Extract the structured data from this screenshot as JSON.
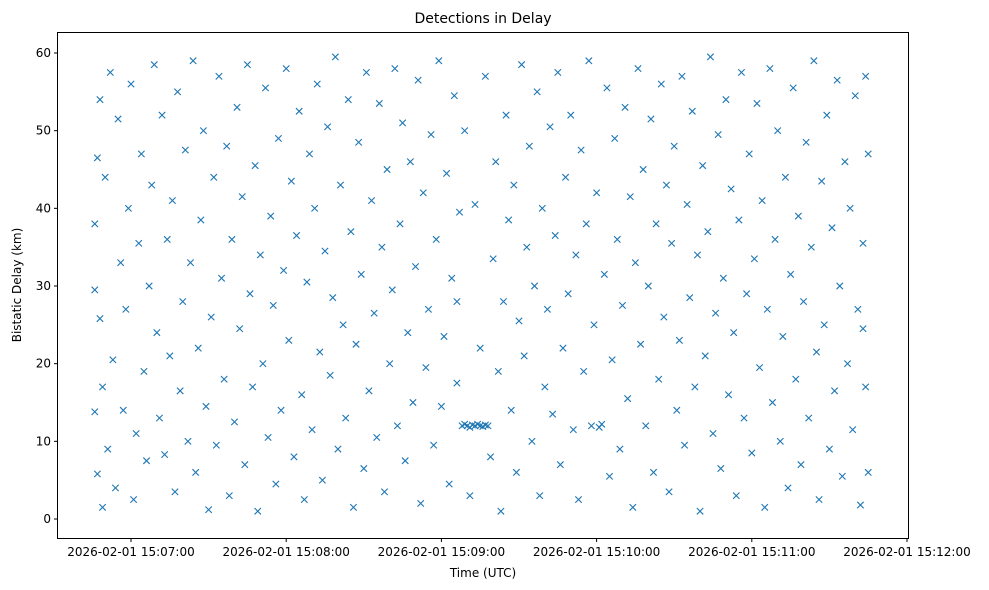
{
  "chart_data": {
    "type": "scatter",
    "title": "Detections in Delay",
    "xlabel": "Time (UTC)",
    "ylabel": "Bistatic Delay (km)",
    "x_unit": "seconds after 2026-02-01 15:06:00 UTC",
    "xlim": [
      26,
      360
    ],
    "ylim": [
      -3,
      63
    ],
    "x_ticks": [
      {
        "value": 60,
        "label": "2026-02-01 15:07:00"
      },
      {
        "value": 120,
        "label": "2026-02-01 15:08:00"
      },
      {
        "value": 180,
        "label": "2026-02-01 15:09:00"
      },
      {
        "value": 240,
        "label": "2026-02-01 15:10:00"
      },
      {
        "value": 300,
        "label": "2026-02-01 15:11:00"
      },
      {
        "value": 360,
        "label": "2026-02-01 15:12:00"
      }
    ],
    "y_ticks": [
      {
        "value": 0,
        "label": "0"
      },
      {
        "value": 10,
        "label": "10"
      },
      {
        "value": 20,
        "label": "20"
      },
      {
        "value": 30,
        "label": "30"
      },
      {
        "value": 40,
        "label": "40"
      },
      {
        "value": 50,
        "label": "50"
      },
      {
        "value": 60,
        "label": "60"
      }
    ],
    "grid": false,
    "marker": "x",
    "color": "#1f77b4",
    "points_note": "approximate representative sample of the ~2000 detections",
    "points": [
      [
        46,
        38
      ],
      [
        46,
        13.8
      ],
      [
        46,
        29.5
      ],
      [
        47,
        46.5
      ],
      [
        47,
        5.8
      ],
      [
        48,
        25.8
      ],
      [
        48,
        54
      ],
      [
        49,
        1.5
      ],
      [
        49,
        17
      ],
      [
        50,
        44
      ],
      [
        51,
        9
      ],
      [
        52,
        57.5
      ],
      [
        53,
        20.5
      ],
      [
        54,
        4
      ],
      [
        55,
        51.5
      ],
      [
        56,
        33
      ],
      [
        57,
        14
      ],
      [
        58,
        27
      ],
      [
        59,
        40
      ],
      [
        60,
        56
      ],
      [
        61,
        2.5
      ],
      [
        62,
        11
      ],
      [
        63,
        35.5
      ],
      [
        64,
        47
      ],
      [
        65,
        19
      ],
      [
        66,
        7.5
      ],
      [
        67,
        30
      ],
      [
        68,
        43
      ],
      [
        69,
        58.5
      ],
      [
        70,
        24
      ],
      [
        71,
        13
      ],
      [
        72,
        52
      ],
      [
        73,
        8.3
      ],
      [
        74,
        36
      ],
      [
        75,
        21
      ],
      [
        76,
        41
      ],
      [
        77,
        3.5
      ],
      [
        78,
        55
      ],
      [
        79,
        16.5
      ],
      [
        80,
        28
      ],
      [
        81,
        47.5
      ],
      [
        82,
        10
      ],
      [
        83,
        33
      ],
      [
        84,
        59
      ],
      [
        85,
        6
      ],
      [
        86,
        22
      ],
      [
        87,
        38.5
      ],
      [
        88,
        50
      ],
      [
        89,
        14.5
      ],
      [
        90,
        1.2
      ],
      [
        91,
        26
      ],
      [
        92,
        44
      ],
      [
        93,
        9.5
      ],
      [
        94,
        57
      ],
      [
        95,
        31
      ],
      [
        96,
        18
      ],
      [
        97,
        48
      ],
      [
        98,
        3
      ],
      [
        99,
        36
      ],
      [
        100,
        12.5
      ],
      [
        101,
        53
      ],
      [
        102,
        24.5
      ],
      [
        103,
        41.5
      ],
      [
        104,
        7
      ],
      [
        105,
        58.5
      ],
      [
        106,
        29
      ],
      [
        107,
        17
      ],
      [
        108,
        45.5
      ],
      [
        109,
        1
      ],
      [
        110,
        34
      ],
      [
        111,
        20
      ],
      [
        112,
        55.5
      ],
      [
        113,
        10.5
      ],
      [
        114,
        39
      ],
      [
        115,
        27.5
      ],
      [
        116,
        4.5
      ],
      [
        117,
        49
      ],
      [
        118,
        14
      ],
      [
        119,
        32
      ],
      [
        120,
        58
      ],
      [
        121,
        23
      ],
      [
        122,
        43.5
      ],
      [
        123,
        8
      ],
      [
        124,
        36.5
      ],
      [
        125,
        52.5
      ],
      [
        126,
        16
      ],
      [
        127,
        2.5
      ],
      [
        128,
        30.5
      ],
      [
        129,
        47
      ],
      [
        130,
        11.5
      ],
      [
        131,
        40
      ],
      [
        132,
        56
      ],
      [
        133,
        21.5
      ],
      [
        134,
        5
      ],
      [
        135,
        34.5
      ],
      [
        136,
        50.5
      ],
      [
        137,
        18.5
      ],
      [
        138,
        28.5
      ],
      [
        139,
        59.5
      ],
      [
        140,
        9
      ],
      [
        141,
        43
      ],
      [
        142,
        25
      ],
      [
        143,
        13
      ],
      [
        144,
        54
      ],
      [
        145,
        37
      ],
      [
        146,
        1.5
      ],
      [
        147,
        22.5
      ],
      [
        148,
        48.5
      ],
      [
        149,
        31.5
      ],
      [
        150,
        6.5
      ],
      [
        151,
        57.5
      ],
      [
        152,
        16.5
      ],
      [
        153,
        41
      ],
      [
        154,
        26.5
      ],
      [
        155,
        10.5
      ],
      [
        156,
        53.5
      ],
      [
        157,
        35
      ],
      [
        158,
        3.5
      ],
      [
        159,
        45
      ],
      [
        160,
        20
      ],
      [
        161,
        29.5
      ],
      [
        162,
        58
      ],
      [
        163,
        12
      ],
      [
        164,
        38
      ],
      [
        165,
        51
      ],
      [
        166,
        7.5
      ],
      [
        167,
        24
      ],
      [
        168,
        46
      ],
      [
        169,
        15
      ],
      [
        170,
        32.5
      ],
      [
        171,
        56.5
      ],
      [
        172,
        2
      ],
      [
        173,
        42
      ],
      [
        174,
        19.5
      ],
      [
        175,
        27
      ],
      [
        176,
        49.5
      ],
      [
        177,
        9.5
      ],
      [
        178,
        36
      ],
      [
        179,
        59
      ],
      [
        180,
        14.5
      ],
      [
        181,
        23.5
      ],
      [
        182,
        44.5
      ],
      [
        183,
        4.5
      ],
      [
        184,
        31
      ],
      [
        185,
        54.5
      ],
      [
        186,
        17.5
      ],
      [
        187,
        39.5
      ],
      [
        188,
        12
      ],
      [
        189,
        12.2
      ],
      [
        190,
        12
      ],
      [
        191,
        11.8
      ],
      [
        192,
        12.1
      ],
      [
        193,
        12
      ],
      [
        194,
        12.2
      ],
      [
        195,
        12
      ],
      [
        196,
        11.9
      ],
      [
        197,
        12.1
      ],
      [
        198,
        12
      ],
      [
        186,
        28
      ],
      [
        189,
        50
      ],
      [
        191,
        3
      ],
      [
        193,
        40.5
      ],
      [
        195,
        22
      ],
      [
        197,
        57
      ],
      [
        199,
        8
      ],
      [
        200,
        33.5
      ],
      [
        201,
        46
      ],
      [
        202,
        19
      ],
      [
        203,
        1
      ],
      [
        204,
        28
      ],
      [
        205,
        52
      ],
      [
        206,
        38.5
      ],
      [
        207,
        14
      ],
      [
        208,
        43
      ],
      [
        209,
        6
      ],
      [
        210,
        25.5
      ],
      [
        211,
        58.5
      ],
      [
        212,
        21
      ],
      [
        213,
        35
      ],
      [
        214,
        48
      ],
      [
        215,
        10
      ],
      [
        216,
        30
      ],
      [
        217,
        55
      ],
      [
        218,
        3
      ],
      [
        219,
        40
      ],
      [
        220,
        17
      ],
      [
        221,
        27
      ],
      [
        222,
        50.5
      ],
      [
        223,
        13.5
      ],
      [
        224,
        36.5
      ],
      [
        225,
        57.5
      ],
      [
        226,
        7
      ],
      [
        227,
        22
      ],
      [
        228,
        44
      ],
      [
        229,
        29
      ],
      [
        230,
        52
      ],
      [
        231,
        11.5
      ],
      [
        232,
        34
      ],
      [
        233,
        2.5
      ],
      [
        234,
        47.5
      ],
      [
        235,
        19
      ],
      [
        236,
        38
      ],
      [
        237,
        59
      ],
      [
        238,
        12
      ],
      [
        239,
        25
      ],
      [
        240,
        42
      ],
      [
        241,
        11.8
      ],
      [
        242,
        12.2
      ],
      [
        243,
        31.5
      ],
      [
        244,
        55.5
      ],
      [
        245,
        5.5
      ],
      [
        246,
        20.5
      ],
      [
        247,
        49
      ],
      [
        248,
        36
      ],
      [
        249,
        9
      ],
      [
        250,
        27.5
      ],
      [
        251,
        53
      ],
      [
        252,
        15.5
      ],
      [
        253,
        41.5
      ],
      [
        254,
        1.5
      ],
      [
        255,
        33
      ],
      [
        256,
        58
      ],
      [
        257,
        22.5
      ],
      [
        258,
        45
      ],
      [
        259,
        12
      ],
      [
        260,
        30
      ],
      [
        261,
        51.5
      ],
      [
        262,
        6
      ],
      [
        263,
        38
      ],
      [
        264,
        18
      ],
      [
        265,
        56
      ],
      [
        266,
        26
      ],
      [
        267,
        43
      ],
      [
        268,
        3.5
      ],
      [
        269,
        35.5
      ],
      [
        270,
        48
      ],
      [
        271,
        14
      ],
      [
        272,
        23
      ],
      [
        273,
        57
      ],
      [
        274,
        9.5
      ],
      [
        275,
        40.5
      ],
      [
        276,
        28.5
      ],
      [
        277,
        52.5
      ],
      [
        278,
        17
      ],
      [
        279,
        34
      ],
      [
        280,
        1
      ],
      [
        281,
        45.5
      ],
      [
        282,
        21
      ],
      [
        283,
        37
      ],
      [
        284,
        59.5
      ],
      [
        285,
        11
      ],
      [
        286,
        26.5
      ],
      [
        287,
        49.5
      ],
      [
        288,
        6.5
      ],
      [
        289,
        31
      ],
      [
        290,
        54
      ],
      [
        291,
        16
      ],
      [
        292,
        42.5
      ],
      [
        293,
        24
      ],
      [
        294,
        3
      ],
      [
        295,
        38.5
      ],
      [
        296,
        57.5
      ],
      [
        297,
        13
      ],
      [
        298,
        29
      ],
      [
        299,
        47
      ],
      [
        300,
        8.5
      ],
      [
        301,
        33.5
      ],
      [
        302,
        53.5
      ],
      [
        303,
        19.5
      ],
      [
        304,
        41
      ],
      [
        305,
        1.5
      ],
      [
        306,
        27
      ],
      [
        307,
        58
      ],
      [
        308,
        15
      ],
      [
        309,
        36
      ],
      [
        310,
        50
      ],
      [
        311,
        10
      ],
      [
        312,
        23.5
      ],
      [
        313,
        44
      ],
      [
        314,
        4
      ],
      [
        315,
        31.5
      ],
      [
        316,
        55.5
      ],
      [
        317,
        18
      ],
      [
        318,
        39
      ],
      [
        319,
        7
      ],
      [
        320,
        28
      ],
      [
        321,
        48.5
      ],
      [
        322,
        13
      ],
      [
        323,
        35
      ],
      [
        324,
        59
      ],
      [
        325,
        21.5
      ],
      [
        326,
        2.5
      ],
      [
        327,
        43.5
      ],
      [
        328,
        25
      ],
      [
        329,
        52
      ],
      [
        330,
        9
      ],
      [
        331,
        37.5
      ],
      [
        332,
        16.5
      ],
      [
        333,
        56.5
      ],
      [
        334,
        30
      ],
      [
        335,
        5.5
      ],
      [
        336,
        46
      ],
      [
        337,
        20
      ],
      [
        338,
        40
      ],
      [
        339,
        11.5
      ],
      [
        340,
        54.5
      ],
      [
        341,
        27
      ],
      [
        342,
        1.8
      ],
      [
        343,
        35.5
      ],
      [
        344,
        17
      ],
      [
        345,
        47
      ],
      [
        345,
        6
      ],
      [
        344,
        57
      ],
      [
        343,
        24.5
      ]
    ]
  }
}
